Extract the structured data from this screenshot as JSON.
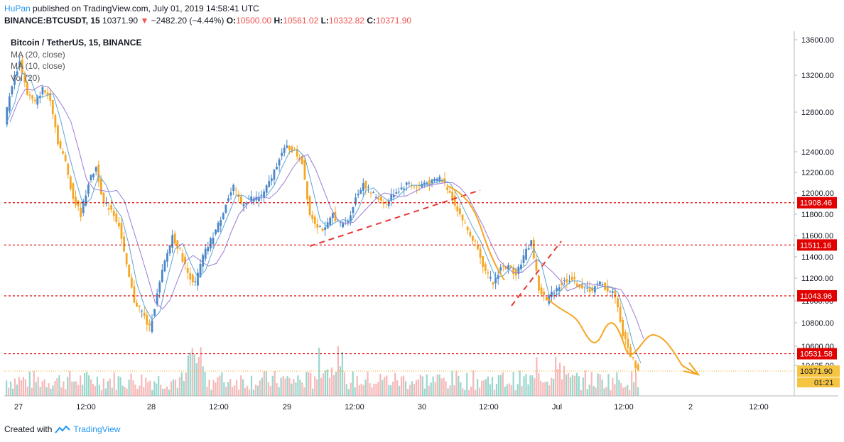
{
  "header": {
    "author": "HuPan",
    "published_text": "published on TradingView.com, July 01, 2019 14:58:41 UTC",
    "symbol": "BINANCE:BTCUSDT, 15",
    "last_price": "10371.90",
    "change_text": "−2482.20 (−4.44%)",
    "open_label": "O:",
    "open": "10500.00",
    "high_label": "H:",
    "high": "10561.02",
    "low_label": "L:",
    "low": "10332.82",
    "close_label": "C:",
    "close": "10371.90"
  },
  "legend": {
    "title": "Bitcoin / TetherUS, 15, BINANCE",
    "indicators": [
      "MA (20, close)",
      "MA (10, close)",
      "Vol (20)"
    ]
  },
  "footer": {
    "created_with": "Created with",
    "brand": "TradingView"
  },
  "colors": {
    "up": "#4a86c8",
    "down": "#f5a623",
    "ma20": "#9c7bd6",
    "ma10": "#5ea5d9",
    "level": "#e00000",
    "annotation": "#f5a623",
    "trend": "#e53935",
    "vol_up": "#7fcdc0",
    "vol_down": "#f4a6a6"
  },
  "chart_data": {
    "type": "candlestick",
    "ylim": [
      10200,
      13700
    ],
    "y_ticks": [
      10425,
      10600,
      10800,
      11000,
      11200,
      11400,
      11600,
      11800,
      12000,
      12200,
      12400,
      12800,
      13200,
      13600
    ],
    "y_tick_labels": [
      "10425.00",
      "10600.00",
      "10800.00",
      "11000.00",
      "11200.00",
      "11400.00",
      "11600.00",
      "11800.00",
      "12000.00",
      "12200.00",
      "12400.00",
      "12800.00",
      "13200.00",
      "13600.00"
    ],
    "x_labels": [
      "27",
      "12:00",
      "28",
      "12:00",
      "29",
      "12:00",
      "30",
      "12:00",
      "Jul",
      "12:00",
      "2",
      "12:00"
    ],
    "levels": [
      {
        "value": 11908.46,
        "label": "11908.46"
      },
      {
        "value": 11511.16,
        "label": "11511.16"
      },
      {
        "value": 11043.96,
        "label": "11043.96"
      },
      {
        "value": 10531.58,
        "label": "10531.58"
      }
    ],
    "last_price": {
      "value": 10371.9,
      "label": "10371.90",
      "countdown": "01:21"
    },
    "price_path": [
      [
        0,
        12700
      ],
      [
        1,
        13100
      ],
      [
        2,
        13350
      ],
      [
        3,
        13000
      ],
      [
        4,
        12900
      ],
      [
        5,
        13050
      ],
      [
        6,
        12950
      ],
      [
        7,
        12500
      ],
      [
        8,
        12300
      ],
      [
        9,
        11950
      ],
      [
        10,
        11800
      ],
      [
        11,
        12100
      ],
      [
        12,
        12250
      ],
      [
        13,
        11900
      ],
      [
        14,
        11850
      ],
      [
        15,
        11700
      ],
      [
        16,
        11300
      ],
      [
        17,
        11000
      ],
      [
        18,
        10900
      ],
      [
        19,
        10750
      ],
      [
        20,
        11050
      ],
      [
        21,
        11350
      ],
      [
        22,
        11600
      ],
      [
        23,
        11450
      ],
      [
        24,
        11250
      ],
      [
        25,
        11150
      ],
      [
        26,
        11400
      ],
      [
        27,
        11550
      ],
      [
        28,
        11700
      ],
      [
        29,
        11900
      ],
      [
        30,
        12050
      ],
      [
        31,
        11900
      ],
      [
        32,
        11950
      ],
      [
        33,
        11950
      ],
      [
        34,
        12000
      ],
      [
        35,
        12150
      ],
      [
        36,
        12350
      ],
      [
        37,
        12450
      ],
      [
        38,
        12400
      ],
      [
        39,
        12300
      ],
      [
        40,
        11800
      ],
      [
        41,
        11700
      ],
      [
        42,
        11650
      ],
      [
        43,
        11800
      ],
      [
        44,
        11700
      ],
      [
        45,
        11750
      ],
      [
        46,
        11950
      ],
      [
        47,
        12100
      ],
      [
        48,
        12000
      ],
      [
        49,
        11950
      ],
      [
        50,
        11900
      ],
      [
        51,
        12000
      ],
      [
        52,
        12050
      ],
      [
        53,
        12100
      ],
      [
        54,
        12050
      ],
      [
        55,
        12100
      ],
      [
        56,
        12100
      ],
      [
        57,
        12150
      ],
      [
        58,
        12050
      ],
      [
        59,
        11900
      ],
      [
        60,
        11750
      ],
      [
        61,
        11600
      ],
      [
        62,
        11500
      ],
      [
        63,
        11250
      ],
      [
        64,
        11150
      ],
      [
        65,
        11300
      ],
      [
        66,
        11300
      ],
      [
        67,
        11250
      ],
      [
        68,
        11400
      ],
      [
        69,
        11550
      ],
      [
        70,
        11100
      ],
      [
        71,
        11000
      ],
      [
        72,
        11100
      ],
      [
        73,
        11150
      ],
      [
        74,
        11200
      ],
      [
        75,
        11150
      ],
      [
        76,
        11100
      ],
      [
        77,
        11100
      ],
      [
        78,
        11150
      ],
      [
        79,
        11100
      ],
      [
        80,
        11050
      ],
      [
        81,
        10700
      ],
      [
        82,
        10520
      ],
      [
        83,
        10371.9
      ]
    ]
  }
}
